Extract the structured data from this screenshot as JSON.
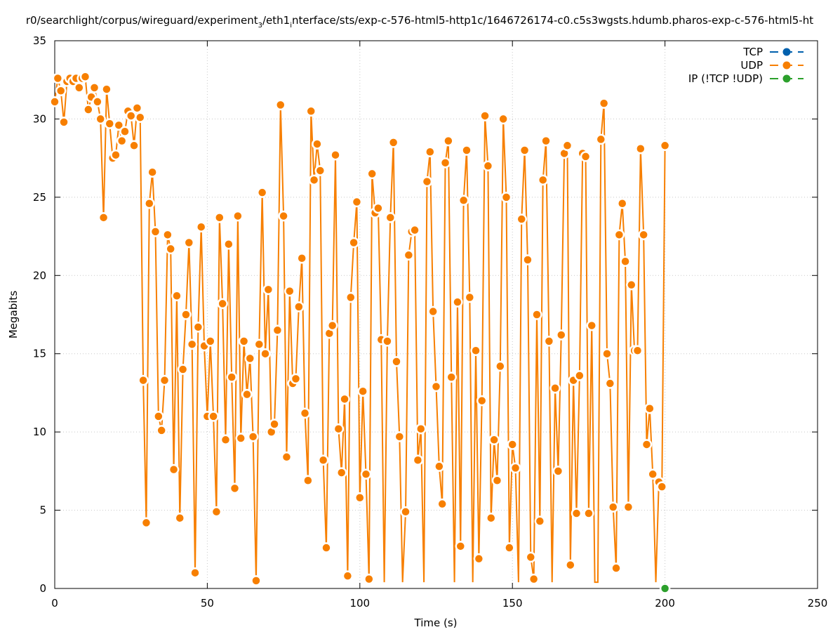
{
  "chart_data": {
    "type": "line",
    "title": "r0/searchlight/corpus/wireguard/experiment",
    "title_sub1": "3",
    "title_mid": "/eth1",
    "title_sub2": "i",
    "title_rest": "nterface/sts/exp-c-576-html5-http1c/1646726174-c0.c5s3wgsts.hdumb.pharos-exp-c-576-html5-ht",
    "xlabel": "Time (s)",
    "ylabel": "Megabits",
    "xlim": [
      0,
      250
    ],
    "ylim": [
      0,
      35
    ],
    "xticks": [
      0,
      50,
      100,
      150,
      200,
      250
    ],
    "yticks": [
      0,
      5,
      10,
      15,
      20,
      25,
      30,
      35
    ],
    "grid": true,
    "legend_position": "top-right",
    "colors": {
      "tcp": "#0060ad",
      "udp": "#f77f00",
      "ip": "#2ca02c"
    },
    "series": [
      {
        "name": "TCP",
        "color": "#0060ad",
        "points": []
      },
      {
        "name": "UDP",
        "color": "#f77f00",
        "points": [
          [
            0,
            31.1
          ],
          [
            1,
            32.6
          ],
          [
            2,
            31.8
          ],
          [
            3,
            29.8
          ],
          [
            4,
            32.4
          ],
          [
            5,
            32.6
          ],
          [
            6,
            32.4
          ],
          [
            7,
            32.6
          ],
          [
            8,
            32.0
          ],
          [
            9,
            32.6
          ],
          [
            10,
            32.7
          ],
          [
            11,
            30.6
          ],
          [
            12,
            31.4
          ],
          [
            13,
            32.0
          ],
          [
            14,
            31.1
          ],
          [
            15,
            30.0
          ],
          [
            16,
            23.7
          ],
          [
            17,
            31.9
          ],
          [
            18,
            29.7
          ],
          [
            19,
            27.5
          ],
          [
            20,
            27.7
          ],
          [
            21,
            29.6
          ],
          [
            22,
            28.6
          ],
          [
            23,
            29.2
          ],
          [
            24,
            30.5
          ],
          [
            25,
            30.2
          ],
          [
            26,
            28.3
          ],
          [
            27,
            30.7
          ],
          [
            28,
            30.1
          ],
          [
            29,
            13.3
          ],
          [
            30,
            4.2
          ],
          [
            31,
            24.6
          ],
          [
            32,
            26.6
          ],
          [
            33,
            22.8
          ],
          [
            34,
            11.0
          ],
          [
            35,
            10.1
          ],
          [
            36,
            13.3
          ],
          [
            37,
            22.6
          ],
          [
            38,
            21.7
          ],
          [
            39,
            7.6
          ],
          [
            40,
            18.7
          ],
          [
            41,
            4.5
          ],
          [
            42,
            14.0
          ],
          [
            43,
            17.5
          ],
          [
            44,
            22.1
          ],
          [
            45,
            15.6
          ],
          [
            46,
            1.0
          ],
          [
            47,
            16.7
          ],
          [
            48,
            23.1
          ],
          [
            49,
            15.5
          ],
          [
            50,
            11.0
          ],
          [
            51,
            15.8
          ],
          [
            52,
            11.0
          ],
          [
            53,
            4.9
          ],
          [
            54,
            23.7
          ],
          [
            55,
            18.2
          ],
          [
            56,
            9.5
          ],
          [
            57,
            22.0
          ],
          [
            58,
            13.5
          ],
          [
            59,
            6.4
          ],
          [
            60,
            23.8
          ],
          [
            61,
            9.6
          ],
          [
            62,
            15.8
          ],
          [
            63,
            12.4
          ],
          [
            64,
            14.7
          ],
          [
            65,
            9.7
          ],
          [
            66,
            0.5
          ],
          [
            67,
            15.6
          ],
          [
            68,
            25.3
          ],
          [
            69,
            15.0
          ],
          [
            70,
            19.1
          ],
          [
            71,
            10.0
          ],
          [
            72,
            10.5
          ],
          [
            73,
            16.5
          ],
          [
            74,
            30.9
          ],
          [
            75,
            23.8
          ],
          [
            76,
            8.4
          ],
          [
            77,
            19.0
          ],
          [
            78,
            13.1
          ],
          [
            79,
            13.4
          ],
          [
            80,
            18.0
          ],
          [
            81,
            21.1
          ],
          [
            82,
            11.2
          ],
          [
            83,
            6.9
          ],
          [
            84,
            30.5
          ],
          [
            85,
            26.1
          ],
          [
            86,
            28.4
          ],
          [
            87,
            26.7
          ],
          [
            88,
            8.2
          ],
          [
            89,
            2.6
          ],
          [
            90,
            16.3
          ],
          [
            91,
            16.8
          ],
          [
            92,
            27.7
          ],
          [
            93,
            10.2
          ],
          [
            94,
            7.4
          ],
          [
            95,
            12.1
          ],
          [
            96,
            0.8
          ],
          [
            97,
            18.6
          ],
          [
            98,
            22.1
          ],
          [
            99,
            24.7
          ],
          [
            100,
            5.8
          ],
          [
            101,
            12.6
          ],
          [
            102,
            7.3
          ],
          [
            103,
            0.6
          ],
          [
            104,
            26.5
          ],
          [
            105,
            24.0
          ],
          [
            106,
            24.3
          ],
          [
            107,
            15.9
          ],
          [
            108,
            0.4
          ],
          [
            109,
            15.8
          ],
          [
            110,
            23.7
          ],
          [
            111,
            28.5
          ],
          [
            112,
            14.5
          ],
          [
            113,
            9.7
          ],
          [
            114,
            0.4
          ],
          [
            115,
            4.9
          ],
          [
            116,
            21.3
          ],
          [
            117,
            22.8
          ],
          [
            118,
            22.9
          ],
          [
            119,
            8.2
          ],
          [
            120,
            10.2
          ],
          [
            121,
            0.4
          ],
          [
            122,
            26.0
          ],
          [
            123,
            27.9
          ],
          [
            124,
            17.7
          ],
          [
            125,
            12.9
          ],
          [
            126,
            7.8
          ],
          [
            127,
            5.4
          ],
          [
            128,
            27.2
          ],
          [
            129,
            28.6
          ],
          [
            130,
            13.5
          ],
          [
            131,
            0.4
          ],
          [
            132,
            18.3
          ],
          [
            133,
            2.7
          ],
          [
            134,
            24.8
          ],
          [
            135,
            28.0
          ],
          [
            136,
            18.6
          ],
          [
            137,
            0.4
          ],
          [
            138,
            15.2
          ],
          [
            139,
            1.9
          ],
          [
            140,
            12.0
          ],
          [
            141,
            30.2
          ],
          [
            142,
            27.0
          ],
          [
            143,
            4.5
          ],
          [
            144,
            9.5
          ],
          [
            145,
            6.9
          ],
          [
            146,
            14.2
          ],
          [
            147,
            30.0
          ],
          [
            148,
            25.0
          ],
          [
            149,
            2.6
          ],
          [
            150,
            9.2
          ],
          [
            151,
            7.7
          ],
          [
            152,
            0.4
          ],
          [
            153,
            23.6
          ],
          [
            154,
            28.0
          ],
          [
            155,
            21.0
          ],
          [
            156,
            2.0
          ],
          [
            157,
            0.6
          ],
          [
            158,
            17.5
          ],
          [
            159,
            4.3
          ],
          [
            160,
            26.1
          ],
          [
            161,
            28.6
          ],
          [
            162,
            15.8
          ],
          [
            163,
            0.4
          ],
          [
            164,
            12.8
          ],
          [
            165,
            7.5
          ],
          [
            166,
            16.2
          ],
          [
            167,
            27.8
          ],
          [
            168,
            28.3
          ],
          [
            169,
            1.5
          ],
          [
            170,
            13.3
          ],
          [
            171,
            4.8
          ],
          [
            172,
            13.6
          ],
          [
            173,
            27.8
          ],
          [
            174,
            27.6
          ],
          [
            175,
            4.8
          ],
          [
            176,
            16.8
          ],
          [
            177,
            0.4
          ],
          [
            178,
            0.4
          ],
          [
            179,
            28.7
          ],
          [
            180,
            31.0
          ],
          [
            181,
            15.0
          ],
          [
            182,
            13.1
          ],
          [
            183,
            5.2
          ],
          [
            184,
            1.3
          ],
          [
            185,
            22.6
          ],
          [
            186,
            24.6
          ],
          [
            187,
            20.9
          ],
          [
            188,
            5.2
          ],
          [
            189,
            19.4
          ],
          [
            190,
            15.2
          ],
          [
            191,
            15.2
          ],
          [
            192,
            28.1
          ],
          [
            193,
            22.6
          ],
          [
            194,
            9.2
          ],
          [
            195,
            11.5
          ],
          [
            196,
            7.3
          ],
          [
            197,
            0.4
          ],
          [
            198,
            6.8
          ],
          [
            199,
            6.5
          ],
          [
            200,
            28.3
          ]
        ]
      },
      {
        "name": "IP (!TCP  !UDP)",
        "color": "#2ca02c",
        "points": [
          [
            200,
            0
          ]
        ]
      }
    ]
  }
}
